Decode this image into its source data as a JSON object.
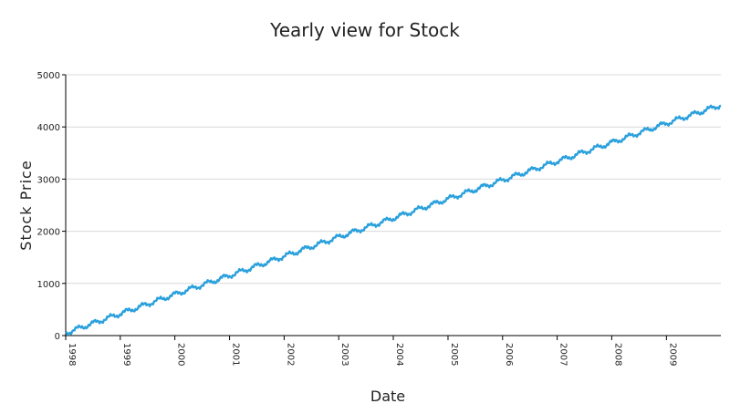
{
  "chart_data": {
    "type": "line",
    "title": "Yearly view for Stock",
    "xlabel": "Date",
    "ylabel": "Stock Price",
    "x_tick_labels": [
      "1998",
      "1999",
      "2000",
      "2001",
      "2002",
      "2003",
      "2004",
      "2005",
      "2006",
      "2007",
      "2008",
      "2009"
    ],
    "y_tick_labels": [
      "0",
      "1000",
      "2000",
      "3000",
      "4000",
      "5000"
    ],
    "ylim": [
      0,
      5000
    ],
    "xlim": [
      "1998-01-01",
      "2009-12-31"
    ],
    "grid": {
      "horizontal": true,
      "vertical": false
    },
    "colors": {
      "series": "#2aa0dc",
      "grid": "#d9d9d9",
      "axis": "#000000"
    },
    "series": [
      {
        "x": [
          "1998-01-01",
          "1999-01-01",
          "2000-01-01",
          "2001-01-01",
          "2002-01-01",
          "2003-01-01",
          "2004-01-01",
          "2005-01-01",
          "2006-01-01",
          "2007-01-01",
          "2008-01-01",
          "2009-01-01",
          "2009-12-31"
        ],
        "values": [
          50,
          420,
          790,
          1150,
          1520,
          1890,
          2250,
          2620,
          2980,
          3340,
          3700,
          4070,
          4420
        ]
      }
    ]
  }
}
